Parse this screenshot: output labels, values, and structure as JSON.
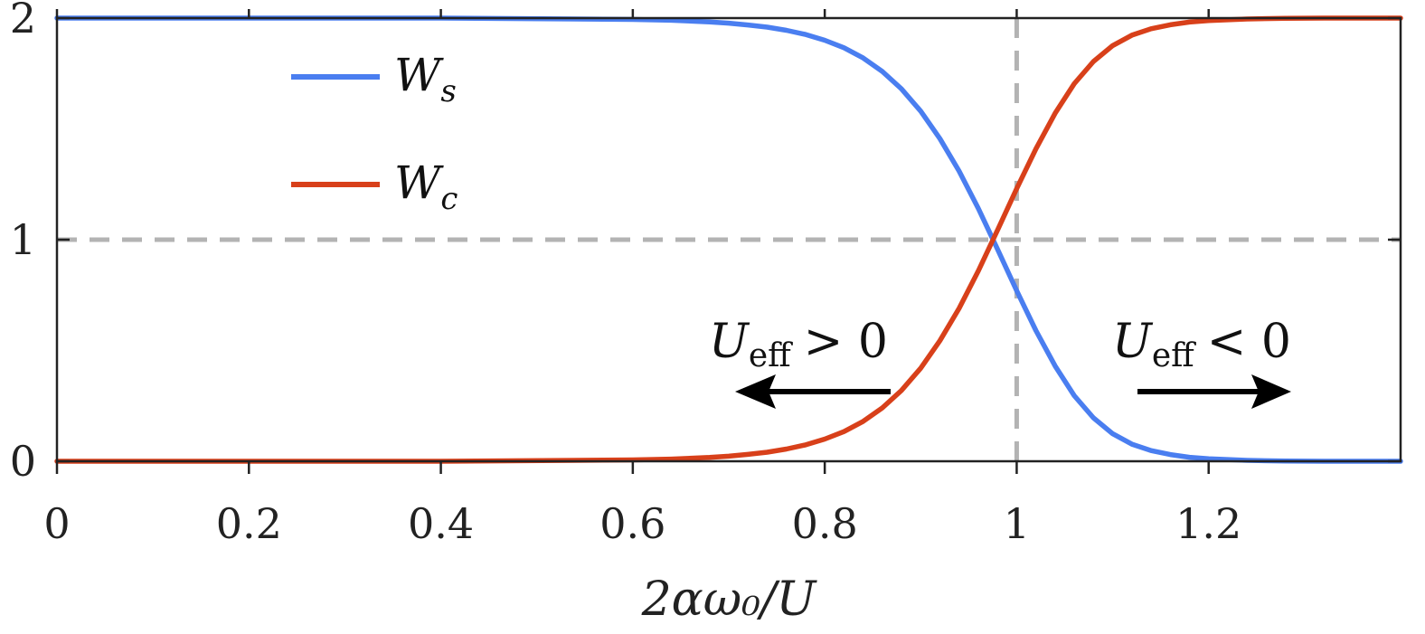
{
  "chart_data": {
    "type": "line",
    "title": "",
    "xlabel": "2αω₀/U",
    "ylabel": "",
    "xlim": [
      0,
      1.4
    ],
    "ylim": [
      0,
      2
    ],
    "x_ticks": [
      "0",
      "0.2",
      "0.4",
      "0.6",
      "0.8",
      "1",
      "1.2"
    ],
    "y_ticks": [
      "0",
      "1",
      "2"
    ],
    "grid": false,
    "legend_position": "top-left",
    "series": [
      {
        "name": "W_s",
        "label_main": "W",
        "label_sub": "s",
        "color": "#4a7ef0",
        "x": [
          0,
          0.2,
          0.4,
          0.6,
          0.64,
          0.68,
          0.7,
          0.72,
          0.74,
          0.76,
          0.78,
          0.8,
          0.82,
          0.84,
          0.86,
          0.88,
          0.9,
          0.92,
          0.94,
          0.96,
          0.98,
          1.0,
          1.02,
          1.04,
          1.06,
          1.08,
          1.1,
          1.12,
          1.14,
          1.16,
          1.18,
          1.2,
          1.24,
          1.28,
          1.32,
          1.36,
          1.4
        ],
        "y": [
          2.0,
          2.0,
          2.0,
          1.994,
          1.99,
          1.983,
          1.977,
          1.969,
          1.959,
          1.945,
          1.926,
          1.9,
          1.866,
          1.82,
          1.759,
          1.68,
          1.58,
          1.456,
          1.31,
          1.141,
          0.957,
          0.77,
          0.59,
          0.43,
          0.296,
          0.196,
          0.124,
          0.077,
          0.048,
          0.03,
          0.018,
          0.011,
          0.004,
          0.001,
          0.0,
          0.0,
          0.0
        ]
      },
      {
        "name": "W_c",
        "label_main": "W",
        "label_sub": "c",
        "color": "#d8401a",
        "x": [
          0,
          0.2,
          0.4,
          0.6,
          0.64,
          0.68,
          0.7,
          0.72,
          0.74,
          0.76,
          0.78,
          0.8,
          0.82,
          0.84,
          0.86,
          0.88,
          0.9,
          0.92,
          0.94,
          0.96,
          0.98,
          1.0,
          1.02,
          1.04,
          1.06,
          1.08,
          1.1,
          1.12,
          1.14,
          1.16,
          1.18,
          1.2,
          1.24,
          1.28,
          1.32,
          1.36,
          1.4
        ],
        "y": [
          0.0,
          0.0,
          0.0,
          0.006,
          0.01,
          0.017,
          0.023,
          0.031,
          0.041,
          0.055,
          0.074,
          0.1,
          0.134,
          0.18,
          0.241,
          0.32,
          0.42,
          0.544,
          0.69,
          0.859,
          1.043,
          1.23,
          1.41,
          1.57,
          1.704,
          1.804,
          1.876,
          1.923,
          1.952,
          1.97,
          1.982,
          1.989,
          1.996,
          1.999,
          2.0,
          2.0,
          2.0
        ]
      }
    ],
    "reference_lines": [
      {
        "orientation": "horizontal",
        "value": 1,
        "style": "dashed",
        "color": "#b3b3b3"
      },
      {
        "orientation": "vertical",
        "value": 1,
        "style": "dashed",
        "color": "#b3b3b3"
      }
    ],
    "annotations": [
      {
        "main": "U",
        "sub": "eff",
        "relation": "> 0",
        "arrow_direction": "left"
      },
      {
        "main": "U",
        "sub": "eff",
        "relation": "< 0",
        "arrow_direction": "right"
      }
    ]
  }
}
